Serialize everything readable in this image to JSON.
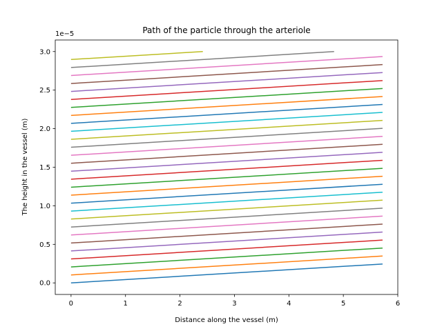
{
  "chart_data": {
    "type": "line",
    "title": "Path of the particle through the arteriole",
    "xlabel": "Distance along the vessel (m)",
    "ylabel": "The height in the vessel (m)",
    "y_offset_label": "1e−5",
    "xlim": [
      -0.29,
      6.0
    ],
    "ylim": [
      -0.15,
      3.15
    ],
    "x_ticks": [
      0,
      1,
      2,
      3,
      4,
      5,
      6
    ],
    "x_tick_labels": [
      "0",
      "1",
      "2",
      "3",
      "4",
      "5",
      "6"
    ],
    "y_ticks": [
      0.0,
      0.5,
      1.0,
      1.5,
      2.0,
      2.5,
      3.0
    ],
    "y_tick_labels": [
      "0.0",
      "0.5",
      "1.0",
      "1.5",
      "2.0",
      "2.5",
      "3.0"
    ],
    "grid": false,
    "legend": "none",
    "series": [
      {
        "x": [
          0,
          5.72
        ],
        "y": [
          0.0,
          0.245
        ],
        "color": "#1f77b4"
      },
      {
        "x": [
          0,
          5.72
        ],
        "y": [
          0.103,
          0.348
        ],
        "color": "#ff7f0e"
      },
      {
        "x": [
          0,
          5.72
        ],
        "y": [
          0.207,
          0.452
        ],
        "color": "#2ca02c"
      },
      {
        "x": [
          0,
          5.72
        ],
        "y": [
          0.31,
          0.555
        ],
        "color": "#d62728"
      },
      {
        "x": [
          0,
          5.72
        ],
        "y": [
          0.414,
          0.659
        ],
        "color": "#9467bd"
      },
      {
        "x": [
          0,
          5.72
        ],
        "y": [
          0.517,
          0.762
        ],
        "color": "#8c564b"
      },
      {
        "x": [
          0,
          5.72
        ],
        "y": [
          0.621,
          0.866
        ],
        "color": "#e377c2"
      },
      {
        "x": [
          0,
          5.72
        ],
        "y": [
          0.724,
          0.969
        ],
        "color": "#7f7f7f"
      },
      {
        "x": [
          0,
          5.72
        ],
        "y": [
          0.828,
          1.073
        ],
        "color": "#bcbd22"
      },
      {
        "x": [
          0,
          5.72
        ],
        "y": [
          0.931,
          1.176
        ],
        "color": "#17becf"
      },
      {
        "x": [
          0,
          5.72
        ],
        "y": [
          1.034,
          1.279
        ],
        "color": "#1f77b4"
      },
      {
        "x": [
          0,
          5.72
        ],
        "y": [
          1.138,
          1.383
        ],
        "color": "#ff7f0e"
      },
      {
        "x": [
          0,
          5.72
        ],
        "y": [
          1.241,
          1.486
        ],
        "color": "#2ca02c"
      },
      {
        "x": [
          0,
          5.72
        ],
        "y": [
          1.345,
          1.59
        ],
        "color": "#d62728"
      },
      {
        "x": [
          0,
          5.72
        ],
        "y": [
          1.448,
          1.693
        ],
        "color": "#9467bd"
      },
      {
        "x": [
          0,
          5.72
        ],
        "y": [
          1.552,
          1.797
        ],
        "color": "#8c564b"
      },
      {
        "x": [
          0,
          5.72
        ],
        "y": [
          1.655,
          1.9
        ],
        "color": "#e377c2"
      },
      {
        "x": [
          0,
          5.72
        ],
        "y": [
          1.759,
          2.004
        ],
        "color": "#7f7f7f"
      },
      {
        "x": [
          0,
          5.72
        ],
        "y": [
          1.862,
          2.107
        ],
        "color": "#bcbd22"
      },
      {
        "x": [
          0,
          5.72
        ],
        "y": [
          1.966,
          2.211
        ],
        "color": "#17becf"
      },
      {
        "x": [
          0,
          5.72
        ],
        "y": [
          2.069,
          2.314
        ],
        "color": "#1f77b4"
      },
      {
        "x": [
          0,
          5.72
        ],
        "y": [
          2.172,
          2.417
        ],
        "color": "#ff7f0e"
      },
      {
        "x": [
          0,
          5.72
        ],
        "y": [
          2.276,
          2.521
        ],
        "color": "#2ca02c"
      },
      {
        "x": [
          0,
          5.72
        ],
        "y": [
          2.379,
          2.624
        ],
        "color": "#d62728"
      },
      {
        "x": [
          0,
          5.72
        ],
        "y": [
          2.483,
          2.728
        ],
        "color": "#9467bd"
      },
      {
        "x": [
          0,
          5.72
        ],
        "y": [
          2.586,
          2.831
        ],
        "color": "#8c564b"
      },
      {
        "x": [
          0,
          5.72
        ],
        "y": [
          2.69,
          2.935
        ],
        "color": "#e377c2"
      },
      {
        "x": [
          0,
          4.83
        ],
        "y": [
          2.793,
          3.0
        ],
        "color": "#7f7f7f"
      },
      {
        "x": [
          0,
          2.42
        ],
        "y": [
          2.897,
          3.0
        ],
        "color": "#bcbd22"
      }
    ]
  }
}
